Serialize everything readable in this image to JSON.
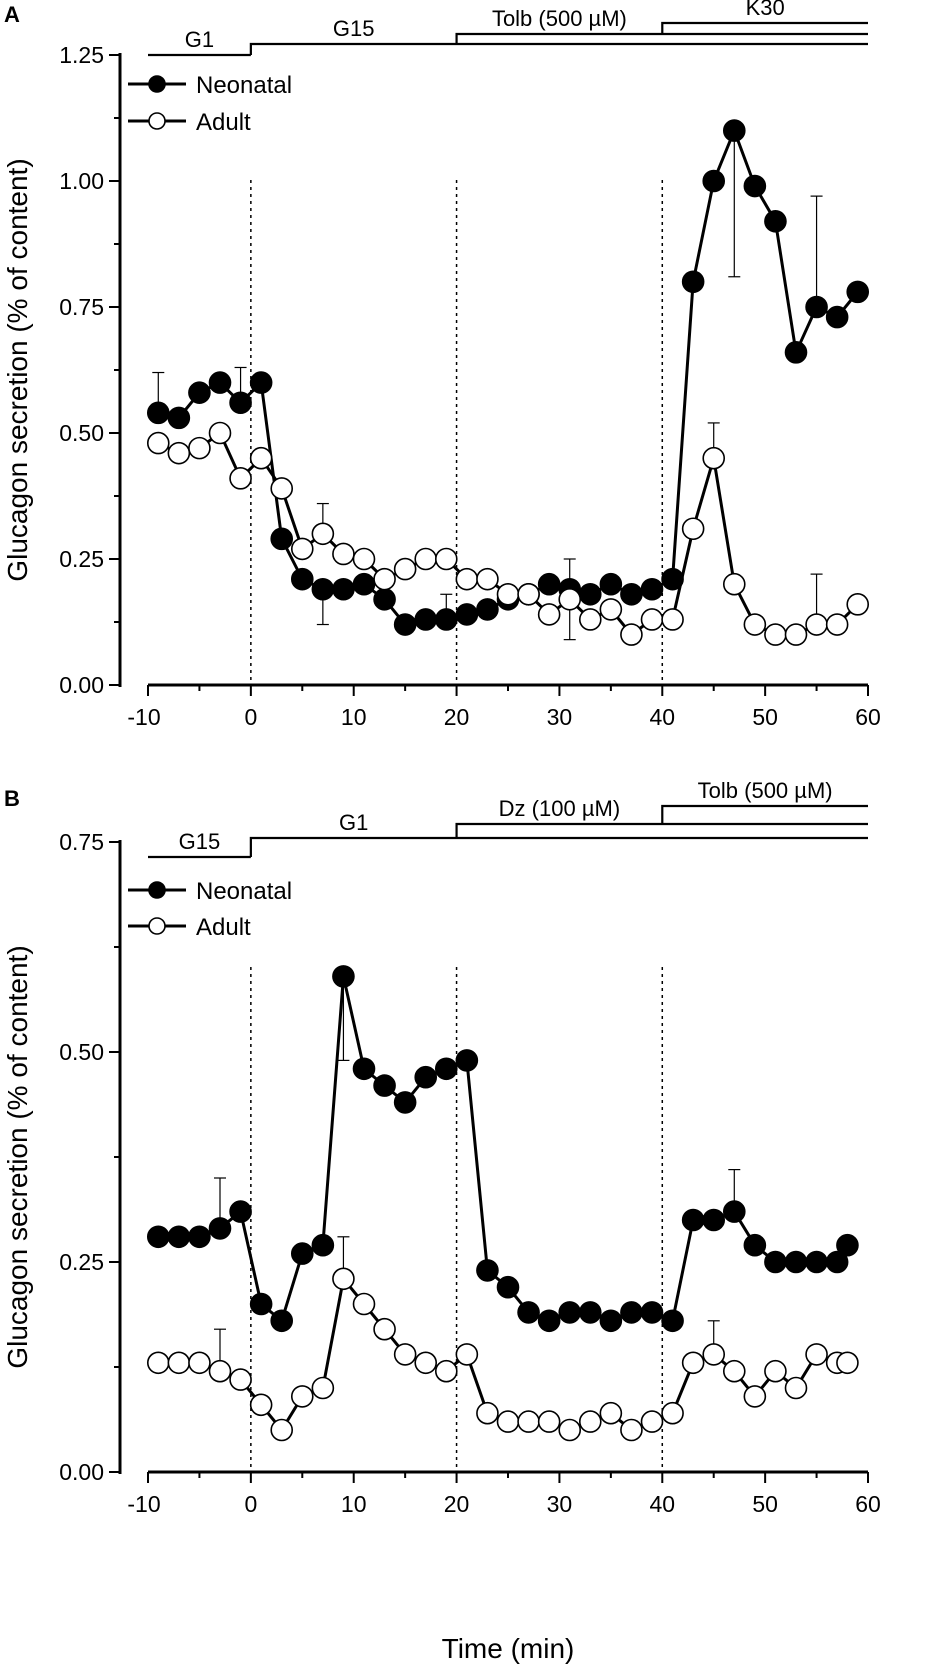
{
  "figure": {
    "xlabel": "Time (min)",
    "legend": {
      "neonatal": "Neonatal",
      "adult": "Adult"
    }
  },
  "chart_data": [
    {
      "type": "line",
      "panel": "A",
      "xlabel": "Time (min)",
      "ylabel": "Glucagon secretion (% of content)",
      "xlim": [
        -10,
        60
      ],
      "ylim": [
        0,
        1.25
      ],
      "xticks": [
        "-10",
        "0",
        "10",
        "20",
        "30",
        "40",
        "50",
        "60"
      ],
      "yticks": [
        "0.00",
        "0.25",
        "0.50",
        "0.75",
        "1.00",
        "1.25"
      ],
      "legend_position": "top-left",
      "conditions": [
        {
          "label": "G1",
          "start": -10,
          "end": 0,
          "level": 1
        },
        {
          "label": "G15",
          "start": 0,
          "end": 60,
          "level": 2
        },
        {
          "label": "Tolb (500 µM)",
          "start": 20,
          "end": 60,
          "level": 3
        },
        {
          "label": "K30",
          "start": 40,
          "end": 60,
          "level": 4
        }
      ],
      "markers": [
        0,
        20,
        40
      ],
      "series": [
        {
          "name": "Neonatal",
          "fill": "#000000",
          "x": [
            -9,
            -7,
            -5,
            -3,
            -1,
            1,
            3,
            5,
            7,
            9,
            11,
            13,
            15,
            17,
            19,
            21,
            23,
            25,
            27,
            29,
            31,
            33,
            35,
            37,
            39,
            41,
            43,
            45,
            47,
            49,
            51,
            53,
            55,
            57,
            59
          ],
          "values": [
            0.54,
            0.53,
            0.58,
            0.6,
            0.56,
            0.6,
            0.29,
            0.21,
            0.19,
            0.19,
            0.2,
            0.17,
            0.12,
            0.13,
            0.13,
            0.14,
            0.15,
            0.17,
            0.18,
            0.2,
            0.19,
            0.18,
            0.2,
            0.18,
            0.19,
            0.21,
            0.8,
            1.0,
            1.1,
            0.99,
            0.92,
            0.66,
            0.75,
            0.73,
            0.78
          ],
          "error_bars": [
            {
              "x": -9,
              "top": 0.62
            },
            {
              "x": -1,
              "top": 0.63
            },
            {
              "x": 7,
              "top": 0.12
            },
            {
              "x": 19,
              "top": 0.18
            },
            {
              "x": 31,
              "top": 0.09
            },
            {
              "x": 47,
              "top": 0.81
            },
            {
              "x": 55,
              "top": 0.97
            }
          ]
        },
        {
          "name": "Adult",
          "fill": "#ffffff",
          "x": [
            -9,
            -7,
            -5,
            -3,
            -1,
            1,
            3,
            5,
            7,
            9,
            11,
            13,
            15,
            17,
            19,
            21,
            23,
            25,
            27,
            29,
            31,
            33,
            35,
            37,
            39,
            41,
            43,
            45,
            47,
            49,
            51,
            53,
            55,
            57,
            59
          ],
          "values": [
            0.48,
            0.46,
            0.47,
            0.5,
            0.41,
            0.45,
            0.39,
            0.27,
            0.3,
            0.26,
            0.25,
            0.21,
            0.23,
            0.25,
            0.25,
            0.21,
            0.21,
            0.18,
            0.18,
            0.14,
            0.17,
            0.13,
            0.15,
            0.1,
            0.13,
            0.13,
            0.31,
            0.45,
            0.2,
            0.12,
            0.1,
            0.1,
            0.12,
            0.12,
            0.16
          ],
          "error_bars": [
            {
              "x": 7,
              "top": 0.36
            },
            {
              "x": 31,
              "top": 0.25
            },
            {
              "x": 45,
              "top": 0.52
            },
            {
              "x": 55,
              "top": 0.22
            }
          ]
        }
      ]
    },
    {
      "type": "line",
      "panel": "B",
      "xlabel": "Time (min)",
      "ylabel": "Glucagon secretion (% of content)",
      "xlim": [
        -10,
        60
      ],
      "ylim": [
        0,
        0.75
      ],
      "xticks": [
        "-10",
        "0",
        "10",
        "20",
        "30",
        "40",
        "50",
        "60"
      ],
      "yticks": [
        "0.00",
        "0.25",
        "0.50",
        "0.75"
      ],
      "legend_position": "top-left",
      "conditions": [
        {
          "label": "G15",
          "start": -10,
          "end": 0,
          "level": 1
        },
        {
          "label": "G1",
          "start": 0,
          "end": 60,
          "level": 2
        },
        {
          "label": "Dz (100 µM)",
          "start": 20,
          "end": 60,
          "level": 3
        },
        {
          "label": "Tolb (500 µM)",
          "start": 40,
          "end": 60,
          "level": 4
        }
      ],
      "markers": [
        0,
        20,
        40
      ],
      "series": [
        {
          "name": "Neonatal",
          "fill": "#000000",
          "x": [
            -9,
            -7,
            -5,
            -3,
            -1,
            1,
            3,
            5,
            7,
            9,
            11,
            13,
            15,
            17,
            19,
            21,
            23,
            25,
            27,
            29,
            31,
            33,
            35,
            37,
            39,
            41,
            43,
            45,
            47,
            49,
            51,
            53,
            55,
            57,
            58
          ],
          "values": [
            0.28,
            0.28,
            0.28,
            0.29,
            0.31,
            0.2,
            0.18,
            0.26,
            0.27,
            0.59,
            0.48,
            0.46,
            0.44,
            0.47,
            0.48,
            0.49,
            0.24,
            0.22,
            0.19,
            0.18,
            0.19,
            0.19,
            0.18,
            0.19,
            0.19,
            0.18,
            0.3,
            0.3,
            0.31,
            0.27,
            0.25,
            0.25,
            0.25,
            0.25,
            0.27
          ],
          "error_bars": [
            {
              "x": -3,
              "top": 0.35
            },
            {
              "x": 9,
              "top": 0.49
            },
            {
              "x": 47,
              "top": 0.36
            }
          ]
        },
        {
          "name": "Adult",
          "fill": "#ffffff",
          "x": [
            -9,
            -7,
            -5,
            -3,
            -1,
            1,
            3,
            5,
            7,
            9,
            11,
            13,
            15,
            17,
            19,
            21,
            23,
            25,
            27,
            29,
            31,
            33,
            35,
            37,
            39,
            41,
            43,
            45,
            47,
            49,
            51,
            53,
            55,
            57,
            58
          ],
          "values": [
            0.13,
            0.13,
            0.13,
            0.12,
            0.11,
            0.08,
            0.05,
            0.09,
            0.1,
            0.23,
            0.2,
            0.17,
            0.14,
            0.13,
            0.12,
            0.14,
            0.07,
            0.06,
            0.06,
            0.06,
            0.05,
            0.06,
            0.07,
            0.05,
            0.06,
            0.07,
            0.13,
            0.14,
            0.12,
            0.09,
            0.12,
            0.1,
            0.14,
            0.13,
            0.13
          ],
          "error_bars": [
            {
              "x": -3,
              "top": 0.17
            },
            {
              "x": 9,
              "top": 0.28
            },
            {
              "x": 45,
              "top": 0.18
            }
          ]
        }
      ]
    }
  ]
}
